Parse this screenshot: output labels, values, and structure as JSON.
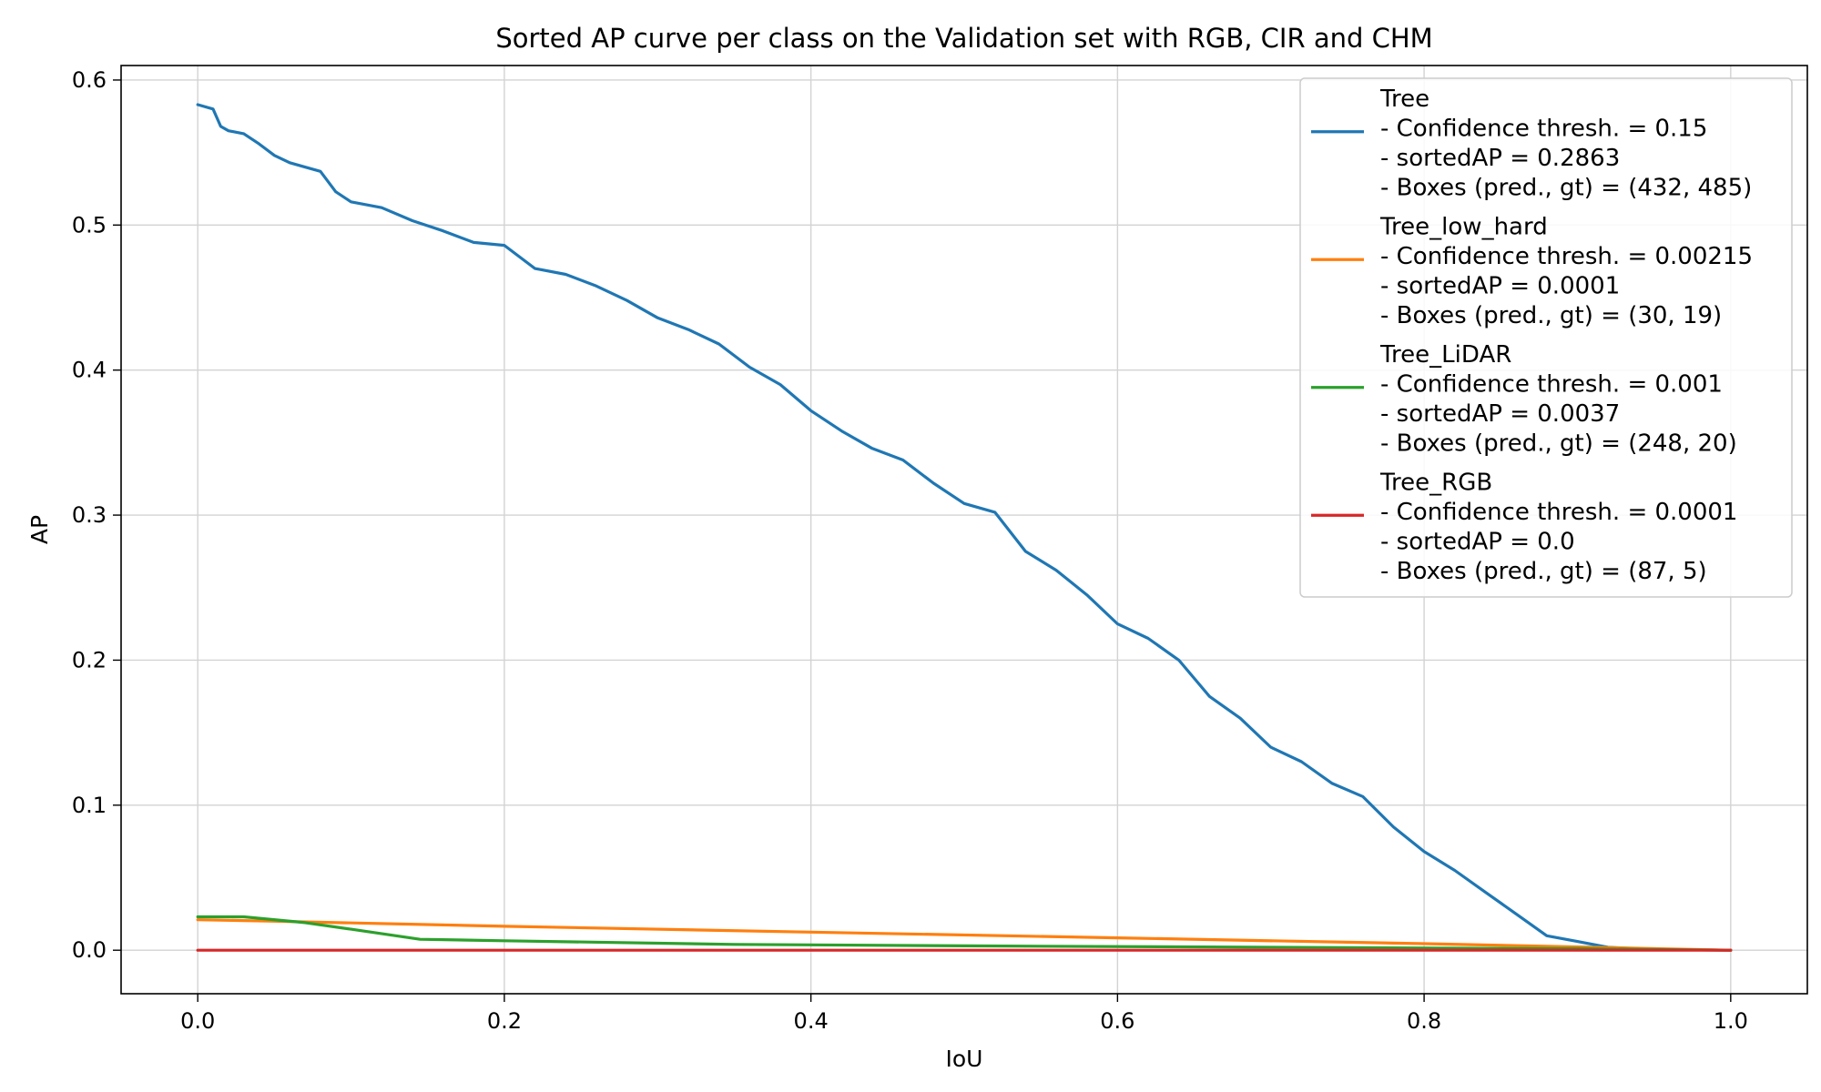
{
  "chart_data": {
    "type": "line",
    "title": "Sorted AP curve per class on the Validation set with RGB, CIR and CHM",
    "xlabel": "IoU",
    "ylabel": "AP",
    "xlim": [
      -0.05,
      1.05
    ],
    "ylim": [
      -0.03,
      0.61
    ],
    "xticks": [
      0.0,
      0.2,
      0.4,
      0.6,
      0.8,
      1.0
    ],
    "xtick_labels": [
      "0.0",
      "0.2",
      "0.4",
      "0.6",
      "0.8",
      "1.0"
    ],
    "yticks": [
      0.0,
      0.1,
      0.2,
      0.3,
      0.4,
      0.5,
      0.6
    ],
    "ytick_labels": [
      "0.0",
      "0.1",
      "0.2",
      "0.3",
      "0.4",
      "0.5",
      "0.6"
    ],
    "grid": true,
    "legend_position": "top-right",
    "series": [
      {
        "name": "Tree",
        "color": "#1f77b4",
        "legend_lines": [
          "Tree",
          "- Confidence thresh. = 0.15",
          "- sortedAP = 0.2863",
          "- Boxes (pred., gt) = (432, 485)"
        ],
        "x": [
          0.0,
          0.01,
          0.015,
          0.02,
          0.03,
          0.04,
          0.05,
          0.06,
          0.07,
          0.08,
          0.09,
          0.1,
          0.12,
          0.14,
          0.16,
          0.18,
          0.2,
          0.22,
          0.24,
          0.26,
          0.28,
          0.3,
          0.32,
          0.34,
          0.36,
          0.38,
          0.4,
          0.42,
          0.44,
          0.46,
          0.48,
          0.5,
          0.52,
          0.54,
          0.56,
          0.58,
          0.6,
          0.62,
          0.64,
          0.66,
          0.68,
          0.7,
          0.72,
          0.74,
          0.76,
          0.78,
          0.8,
          0.82,
          0.84,
          0.86,
          0.88,
          0.9,
          0.92,
          0.94,
          0.96,
          0.98,
          1.0
        ],
        "y": [
          0.583,
          0.58,
          0.568,
          0.565,
          0.563,
          0.556,
          0.548,
          0.543,
          0.54,
          0.537,
          0.523,
          0.516,
          0.512,
          0.503,
          0.496,
          0.488,
          0.486,
          0.47,
          0.466,
          0.458,
          0.448,
          0.436,
          0.428,
          0.418,
          0.402,
          0.39,
          0.372,
          0.358,
          0.346,
          0.338,
          0.322,
          0.308,
          0.302,
          0.275,
          0.262,
          0.245,
          0.225,
          0.215,
          0.2,
          0.175,
          0.16,
          0.14,
          0.13,
          0.115,
          0.106,
          0.085,
          0.068,
          0.055,
          0.04,
          0.025,
          0.01,
          0.006,
          0.002,
          0.001,
          0.0005,
          0.0002,
          0.0
        ]
      },
      {
        "name": "Tree_low_hard",
        "color": "#ff7f0e",
        "legend_lines": [
          "Tree_low_hard",
          "- Confidence thresh. = 0.00215",
          "- sortedAP = 0.0001",
          "- Boxes (pred., gt) = (30, 19)"
        ],
        "x": [
          0.0,
          0.05,
          0.2,
          0.4,
          0.6,
          0.8,
          1.0
        ],
        "y": [
          0.021,
          0.02,
          0.0165,
          0.0125,
          0.0085,
          0.0045,
          0.0
        ]
      },
      {
        "name": "Tree_LiDAR",
        "color": "#2ca02c",
        "legend_lines": [
          "Tree_LiDAR",
          "- Confidence thresh. = 0.001",
          "- sortedAP = 0.0037",
          "- Boxes (pred., gt) = (248, 20)"
        ],
        "x": [
          0.0,
          0.03,
          0.07,
          0.1,
          0.145,
          0.2,
          0.35,
          0.5,
          0.7,
          0.9,
          1.0
        ],
        "y": [
          0.023,
          0.023,
          0.019,
          0.0145,
          0.0075,
          0.0065,
          0.004,
          0.003,
          0.002,
          0.001,
          0.0
        ]
      },
      {
        "name": "Tree_RGB",
        "color": "#d62728",
        "legend_lines": [
          "Tree_RGB",
          "- Confidence thresh. = 0.0001",
          "- sortedAP = 0.0",
          "- Boxes (pred., gt) = (87, 5)"
        ],
        "x": [
          0.0,
          1.0
        ],
        "y": [
          0.0,
          0.0
        ]
      }
    ]
  }
}
